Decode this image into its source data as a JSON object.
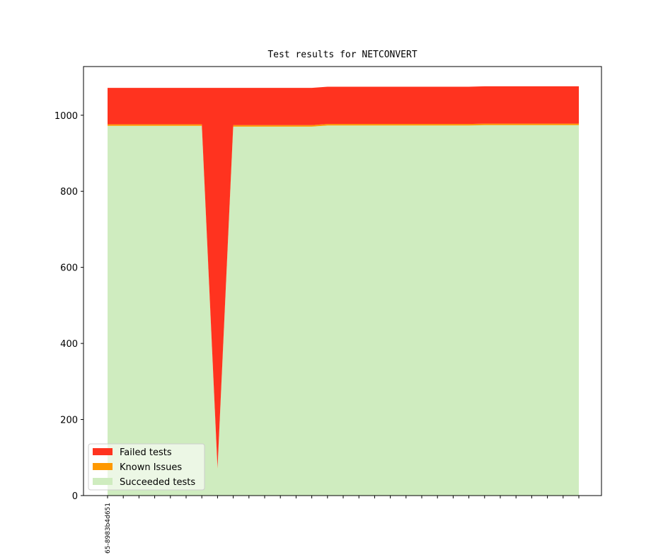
{
  "chart_data": {
    "type": "stacked_area",
    "title": "Test results for NETCONVERT",
    "categories": [
      "65-8983b4d651",
      null,
      null,
      null,
      null,
      null,
      null,
      null,
      null,
      null,
      null,
      null,
      null,
      null,
      null,
      null,
      null,
      null,
      null,
      null,
      null,
      null,
      null,
      null,
      null,
      null,
      null,
      null,
      null,
      null,
      null
    ],
    "series": [
      {
        "name": "Failed tests",
        "color": "#ff331f",
        "values": [
          96,
          96,
          96,
          96,
          96,
          96,
          96,
          1000,
          98,
          98,
          98,
          98,
          98,
          98,
          98,
          98,
          98,
          98,
          98,
          98,
          98,
          98,
          98,
          98,
          98,
          98,
          98,
          98,
          98,
          98,
          98
        ]
      },
      {
        "name": "Known Issues",
        "color": "#ff9900",
        "values": [
          4,
          4,
          4,
          4,
          4,
          4,
          4,
          2,
          4,
          4,
          4,
          4,
          4,
          4,
          4,
          4,
          4,
          4,
          4,
          4,
          4,
          4,
          4,
          4,
          4,
          4,
          4,
          4,
          4,
          4,
          4
        ]
      },
      {
        "name": "Succeeded tests",
        "color": "#cfecbf",
        "values": [
          972,
          972,
          972,
          972,
          972,
          972,
          972,
          70,
          970,
          970,
          970,
          970,
          970,
          970,
          973,
          973,
          973,
          973,
          973,
          973,
          973,
          973,
          973,
          973,
          974,
          974,
          974,
          974,
          974,
          974,
          974
        ]
      }
    ],
    "ylim": [
      0,
      1128
    ],
    "yticks": [
      0,
      200,
      400,
      600,
      800,
      1000
    ],
    "legend": "lower left"
  }
}
